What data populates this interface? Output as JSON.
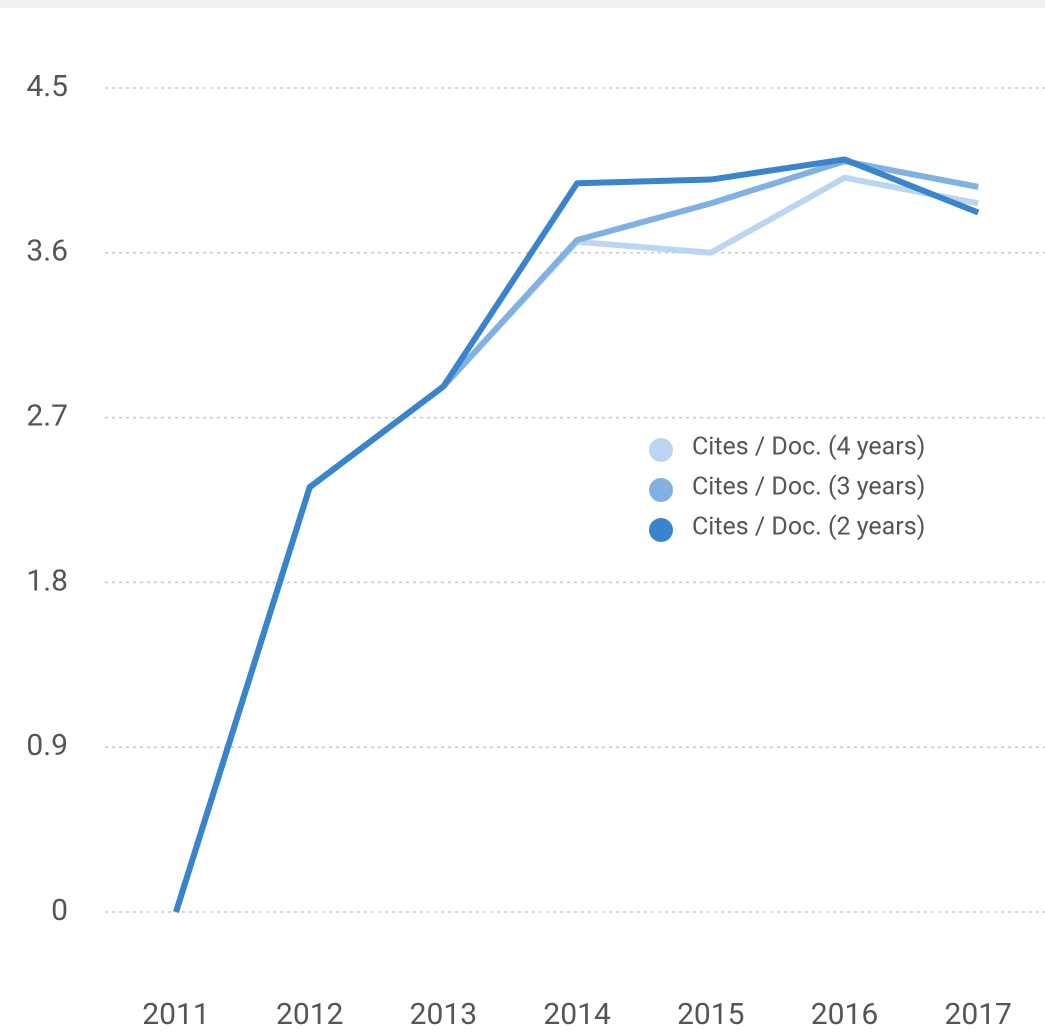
{
  "chart_data": {
    "type": "line",
    "categories": [
      "2011",
      "2012",
      "2013",
      "2014",
      "2015",
      "2016",
      "2017"
    ],
    "series": [
      {
        "name": "Cites / Doc. (4 years)",
        "color": "#bcd6f1",
        "values": [
          0,
          2.32,
          2.87,
          3.66,
          3.6,
          4.01,
          3.87
        ]
      },
      {
        "name": "Cites / Doc. (3 years)",
        "color": "#80b1e0",
        "values": [
          0,
          2.32,
          2.87,
          3.67,
          3.87,
          4.1,
          3.96
        ]
      },
      {
        "name": "Cites / Doc. (2 years)",
        "color": "#3a84cb",
        "values": [
          0,
          2.32,
          2.87,
          3.98,
          4.0,
          4.11,
          3.82
        ]
      }
    ],
    "ylim": [
      0,
      4.5
    ],
    "yticks": [
      0,
      0.9,
      1.8,
      2.7,
      3.6,
      4.5
    ],
    "grid": true,
    "legend": "right"
  }
}
